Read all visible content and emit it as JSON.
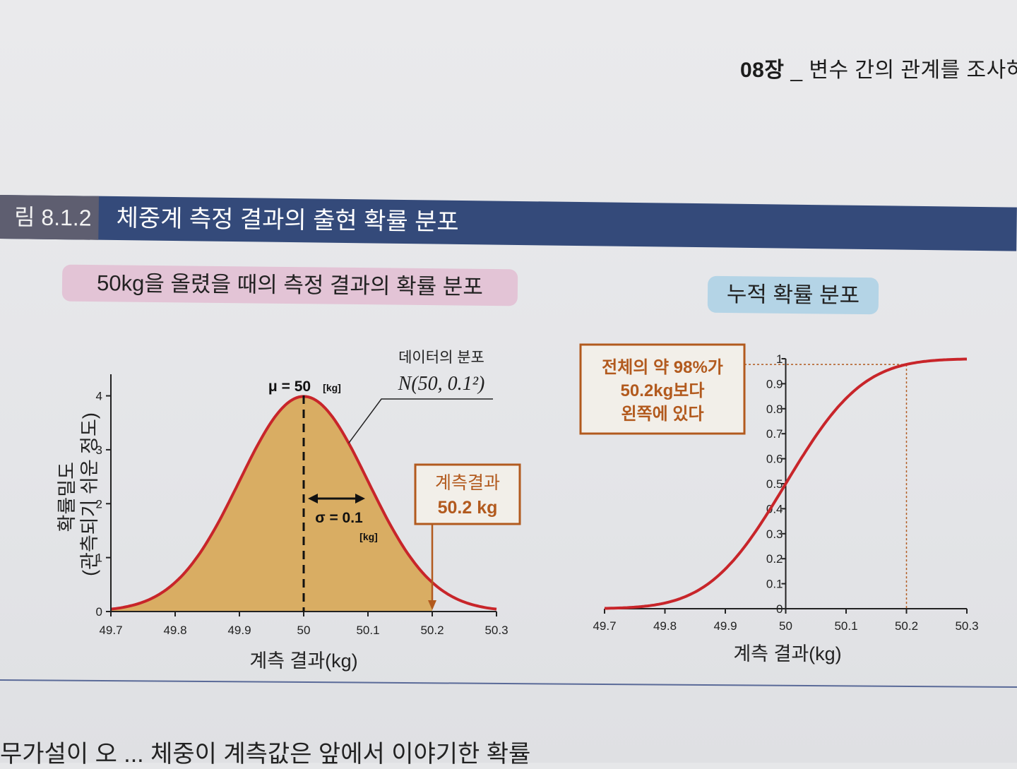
{
  "running_header": {
    "chapter": "08장",
    "title": "_ 변수 간의 관계를 조사하"
  },
  "figure": {
    "number": "림 8.1.2",
    "title": "체중계 측정 결과의 출현 확률 분포"
  },
  "left_panel": {
    "label": "50kg을 올렸을 때의 측정 결과의 확률 분포"
  },
  "right_panel": {
    "label": "누적 확률 분포"
  },
  "annotations": {
    "dist_label": "데이터의 분포",
    "dist_formula": "N(50, 0.1²)",
    "mu_label": "μ = 50",
    "mu_unit": "[kg]",
    "sigma_label": "σ = 0.1",
    "sigma_unit": "[kg]",
    "result_box": [
      "계측결과",
      "50.2 kg"
    ],
    "cdf_box": [
      "전체의 약 98%가",
      "50.2kg보다",
      "왼쪽에 있다"
    ]
  },
  "bottom_text": "무가설이 오 ... 체중이 계측값은 앞에서 이야기한 확률",
  "colors": {
    "curve": "#c8252a",
    "fill": "#d9ad63",
    "annotation": "#b25a1e",
    "header_bar": "#344a7a"
  },
  "chart_data": [
    {
      "type": "area",
      "title": "",
      "xlabel": "계측 결과(kg)",
      "ylabel": "확률밀도\n(관측되기 쉬운 정도)",
      "xlim": [
        49.7,
        50.3
      ],
      "ylim": [
        0,
        4.4
      ],
      "x_ticks": [
        "49.7",
        "49.8",
        "49.9",
        "50",
        "50.1",
        "50.2",
        "50.3"
      ],
      "y_ticks": [
        "0",
        "1",
        "2",
        "3",
        "4"
      ],
      "series": [
        {
          "x": [
            49.7,
            49.75,
            49.8,
            49.85,
            49.9,
            49.95,
            50.0,
            50.05,
            50.1,
            50.15,
            50.2,
            50.25,
            50.3
          ],
          "y": [
            0.018,
            0.175,
            0.54,
            1.295,
            2.42,
            3.521,
            3.989,
            3.521,
            2.42,
            1.295,
            0.54,
            0.175,
            0.018
          ]
        }
      ],
      "mean": 50,
      "sd": 0.1,
      "marker_x": 50.2,
      "grid": false
    },
    {
      "type": "line",
      "title": "",
      "xlabel": "계측 결과(kg)",
      "ylabel": "",
      "xlim": [
        49.7,
        50.3
      ],
      "ylim": [
        0,
        1
      ],
      "x_ticks": [
        "49.7",
        "49.8",
        "49.9",
        "50",
        "50.1",
        "50.2",
        "50.3"
      ],
      "y_ticks": [
        "0",
        "0.1",
        "0.2",
        "0.3",
        "0.4",
        "0.5",
        "0.6",
        "0.7",
        "0.8",
        "0.9",
        "1"
      ],
      "series": [
        {
          "x": [
            49.7,
            49.75,
            49.8,
            49.85,
            49.9,
            49.95,
            50.0,
            50.05,
            50.1,
            50.15,
            50.2,
            50.25,
            50.3
          ],
          "y": [
            0.001,
            0.006,
            0.023,
            0.067,
            0.159,
            0.309,
            0.5,
            0.691,
            0.841,
            0.933,
            0.977,
            0.994,
            0.999
          ]
        }
      ],
      "reference_x": 50.2,
      "reference_y": 0.977,
      "grid": false
    }
  ]
}
